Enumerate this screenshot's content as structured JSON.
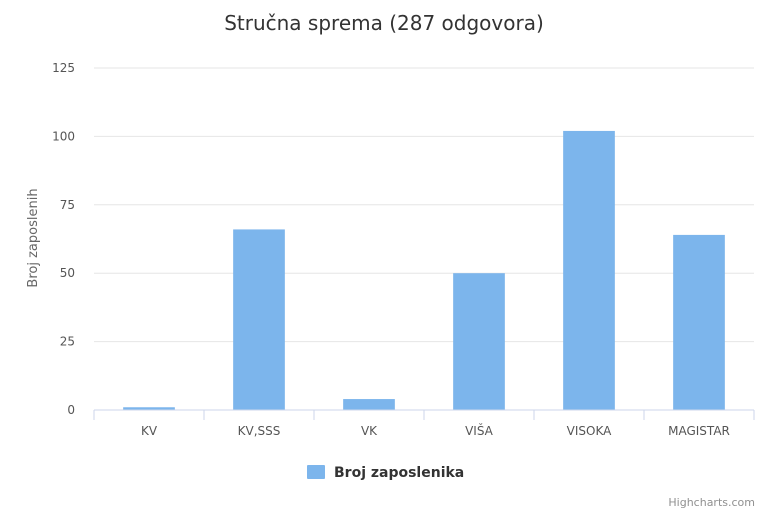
{
  "chart_data": {
    "type": "bar",
    "title": "Stručna sprema (287 odgovora)",
    "xlabel": "",
    "ylabel": "Broj zaposlenih",
    "categories": [
      "KV",
      "KV,SSS",
      "VK",
      "VIŠA",
      "VISOKA",
      "MAGISTAR"
    ],
    "series": [
      {
        "name": "Broj zaposlenika",
        "values": [
          1,
          66,
          4,
          50,
          102,
          64
        ]
      }
    ],
    "ylim": [
      0,
      125
    ],
    "yticks": [
      0,
      25,
      50,
      75,
      100,
      125
    ],
    "grid": true,
    "legend": "bottom-center"
  },
  "colors": {
    "series": "#7cb5ec",
    "grid": "#e6e6e6",
    "axis": "#ccd6eb"
  },
  "credits": "Highcharts.com"
}
